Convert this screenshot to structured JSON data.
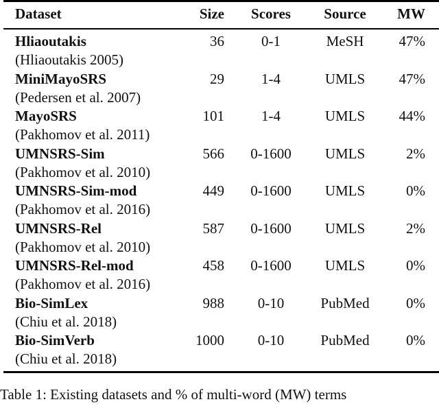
{
  "table": {
    "headers": {
      "dataset": "Dataset",
      "size": "Size",
      "scores": "Scores",
      "source": "Source",
      "mw": "MW"
    },
    "rows": [
      {
        "name": "Hliaoutakis",
        "citation": "(Hliaoutakis 2005)",
        "size": "36",
        "scores": "0-1",
        "source": "MeSH",
        "mw": "47%"
      },
      {
        "name": "MiniMayoSRS",
        "citation": "(Pedersen et al. 2007)",
        "size": "29",
        "scores": "1-4",
        "source": "UMLS",
        "mw": "47%"
      },
      {
        "name": "MayoSRS",
        "citation": "(Pakhomov et al. 2011)",
        "size": "101",
        "scores": "1-4",
        "source": "UMLS",
        "mw": "44%"
      },
      {
        "name": "UMNSRS-Sim",
        "citation": "(Pakhomov et al. 2010)",
        "size": "566",
        "scores": "0-1600",
        "source": "UMLS",
        "mw": "2%"
      },
      {
        "name": "UMNSRS-Sim-mod",
        "citation": "(Pakhomov et al. 2016)",
        "size": "449",
        "scores": "0-1600",
        "source": "UMLS",
        "mw": "0%"
      },
      {
        "name": "UMNSRS-Rel",
        "citation": "(Pakhomov et al. 2010)",
        "size": "587",
        "scores": "0-1600",
        "source": "UMLS",
        "mw": "2%"
      },
      {
        "name": "UMNSRS-Rel-mod",
        "citation": "(Pakhomov et al. 2016)",
        "size": "458",
        "scores": "0-1600",
        "source": "UMLS",
        "mw": "0%"
      },
      {
        "name": "Bio-SimLex",
        "citation": "(Chiu et al. 2018)",
        "size": "988",
        "scores": "0-10",
        "source": "PubMed",
        "mw": "0%"
      },
      {
        "name": "Bio-SimVerb",
        "citation": "(Chiu et al. 2018)",
        "size": "1000",
        "scores": "0-10",
        "source": "PubMed",
        "mw": "0%"
      }
    ]
  },
  "caption": "Table 1: Existing datasets and % of multi-word (MW) terms"
}
